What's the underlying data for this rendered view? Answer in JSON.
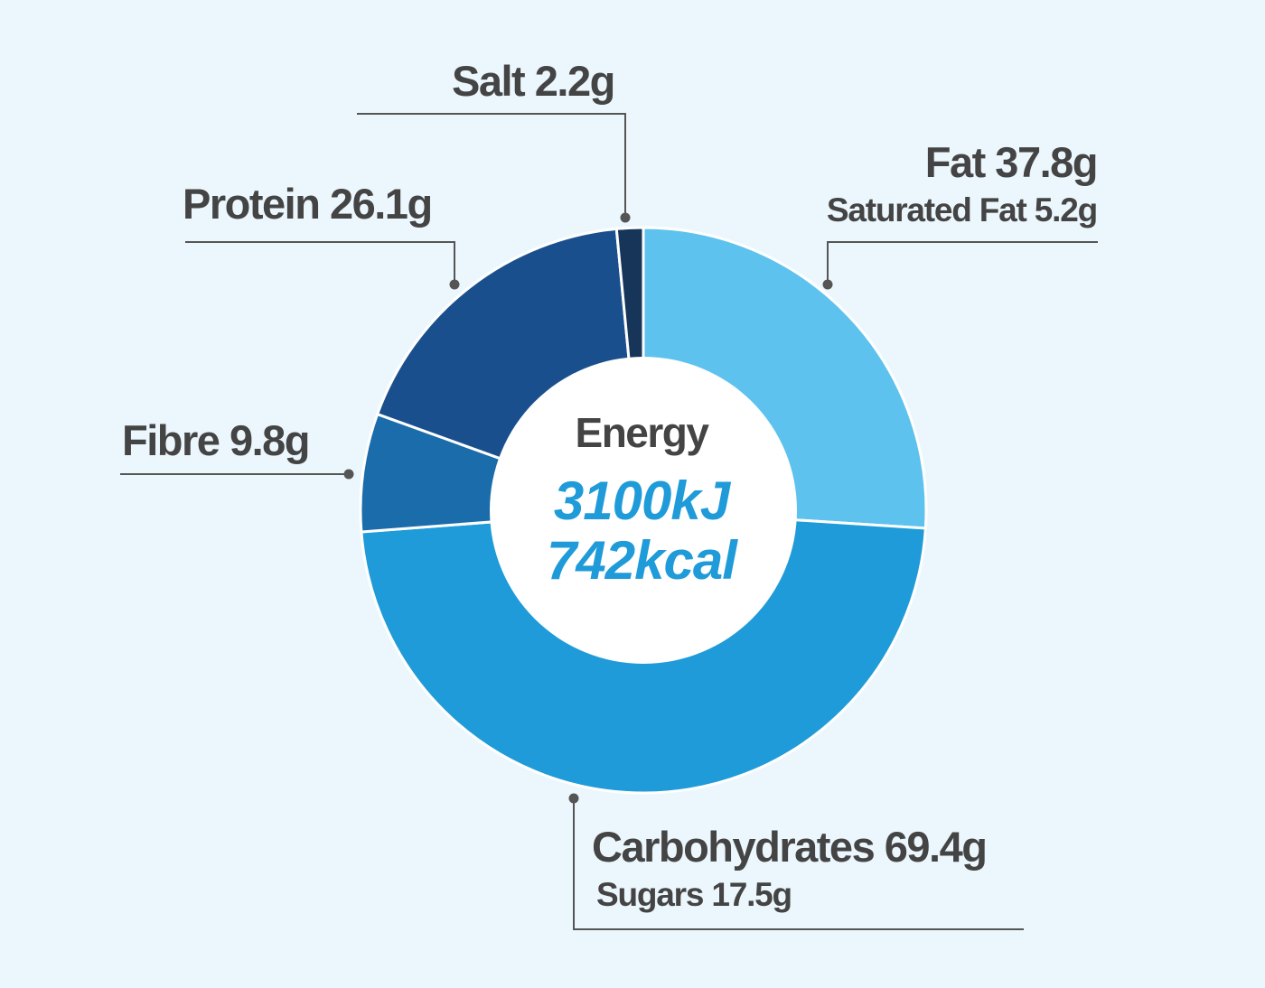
{
  "colors": {
    "fat": "#5ec2ee",
    "carbohydrates": "#1e9bd8",
    "fibre": "#1b6cab",
    "protein": "#1a4f8d",
    "salt": "#173559",
    "text": "#444444",
    "accent": "#1e9bd8",
    "leader": "#555555"
  },
  "center": {
    "title": "Energy",
    "kj": "3100kJ",
    "kcal": "742kcal"
  },
  "labels": {
    "salt": "Salt 2.2g",
    "fat": "Fat 37.8g",
    "saturated_fat": "Saturated Fat 5.2g",
    "protein": "Protein 26.1g",
    "fibre": "Fibre 9.8g",
    "carbohydrates": "Carbohydrates 69.4g",
    "sugars": "Sugars 17.5g"
  },
  "chart_data": {
    "type": "pie",
    "donut": true,
    "series": [
      {
        "name": "Fat",
        "value": 37.8,
        "unit": "g",
        "sub_label": "Saturated Fat",
        "sub_value": 5.2,
        "color": "#5ec2ee"
      },
      {
        "name": "Carbohydrates",
        "value": 69.4,
        "unit": "g",
        "sub_label": "Sugars",
        "sub_value": 17.5,
        "color": "#1e9bd8"
      },
      {
        "name": "Fibre",
        "value": 9.8,
        "unit": "g",
        "color": "#1b6cab"
      },
      {
        "name": "Protein",
        "value": 26.1,
        "unit": "g",
        "color": "#1a4f8d"
      },
      {
        "name": "Salt",
        "value": 2.2,
        "unit": "g",
        "color": "#173559"
      }
    ],
    "center_text": [
      "Energy",
      "3100kJ",
      "742kcal"
    ]
  }
}
